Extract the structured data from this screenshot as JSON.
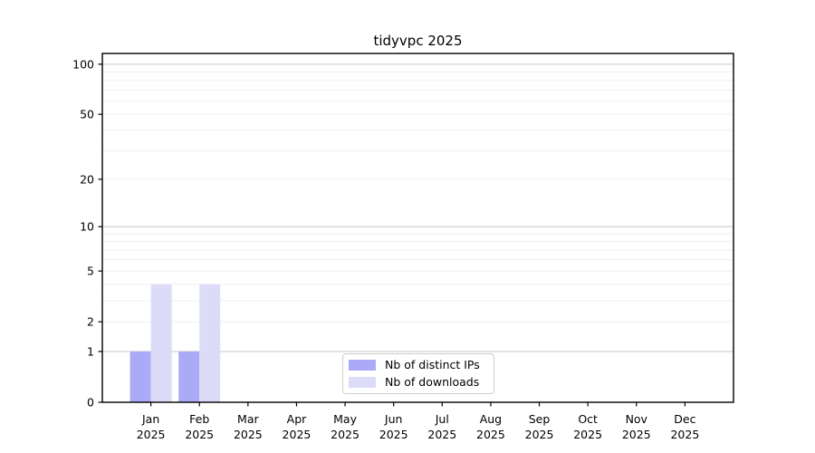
{
  "figure": {
    "title": "tidyvpc 2025"
  },
  "chart_data": {
    "type": "bar",
    "title": "tidyvpc 2025",
    "x_ticks": [
      {
        "month": "Jan",
        "year": "2025"
      },
      {
        "month": "Feb",
        "year": "2025"
      },
      {
        "month": "Mar",
        "year": "2025"
      },
      {
        "month": "Apr",
        "year": "2025"
      },
      {
        "month": "May",
        "year": "2025"
      },
      {
        "month": "Jun",
        "year": "2025"
      },
      {
        "month": "Jul",
        "year": "2025"
      },
      {
        "month": "Aug",
        "year": "2025"
      },
      {
        "month": "Sep",
        "year": "2025"
      },
      {
        "month": "Oct",
        "year": "2025"
      },
      {
        "month": "Nov",
        "year": "2025"
      },
      {
        "month": "Dec",
        "year": "2025"
      }
    ],
    "series": [
      {
        "name": "Nb of distinct IPs",
        "color": "#aaaaf6",
        "values": [
          1,
          1,
          0,
          0,
          0,
          0,
          0,
          0,
          0,
          0,
          0,
          0
        ]
      },
      {
        "name": "Nb of downloads",
        "color": "#dcdcf9",
        "values": [
          4,
          4,
          0,
          0,
          0,
          0,
          0,
          0,
          0,
          0,
          0,
          0
        ]
      }
    ],
    "y_axis": {
      "scale": "log1p",
      "ylim": [
        0,
        116
      ],
      "ticks": [
        0,
        1,
        2,
        5,
        10,
        20,
        50,
        100
      ],
      "major_gridlines": [
        1,
        10,
        100
      ],
      "minor_gridlines": [
        2,
        3,
        4,
        5,
        6,
        7,
        8,
        9,
        20,
        30,
        40,
        50,
        60,
        70,
        80,
        90
      ]
    },
    "legend": {
      "position": "bottom-center",
      "entries": [
        "Nb of distinct IPs",
        "Nb of downloads"
      ]
    },
    "colors": {
      "grid_major": "#c9c9c9",
      "grid_minor": "#efefef",
      "spine": "#000000",
      "text": "#000000"
    }
  }
}
